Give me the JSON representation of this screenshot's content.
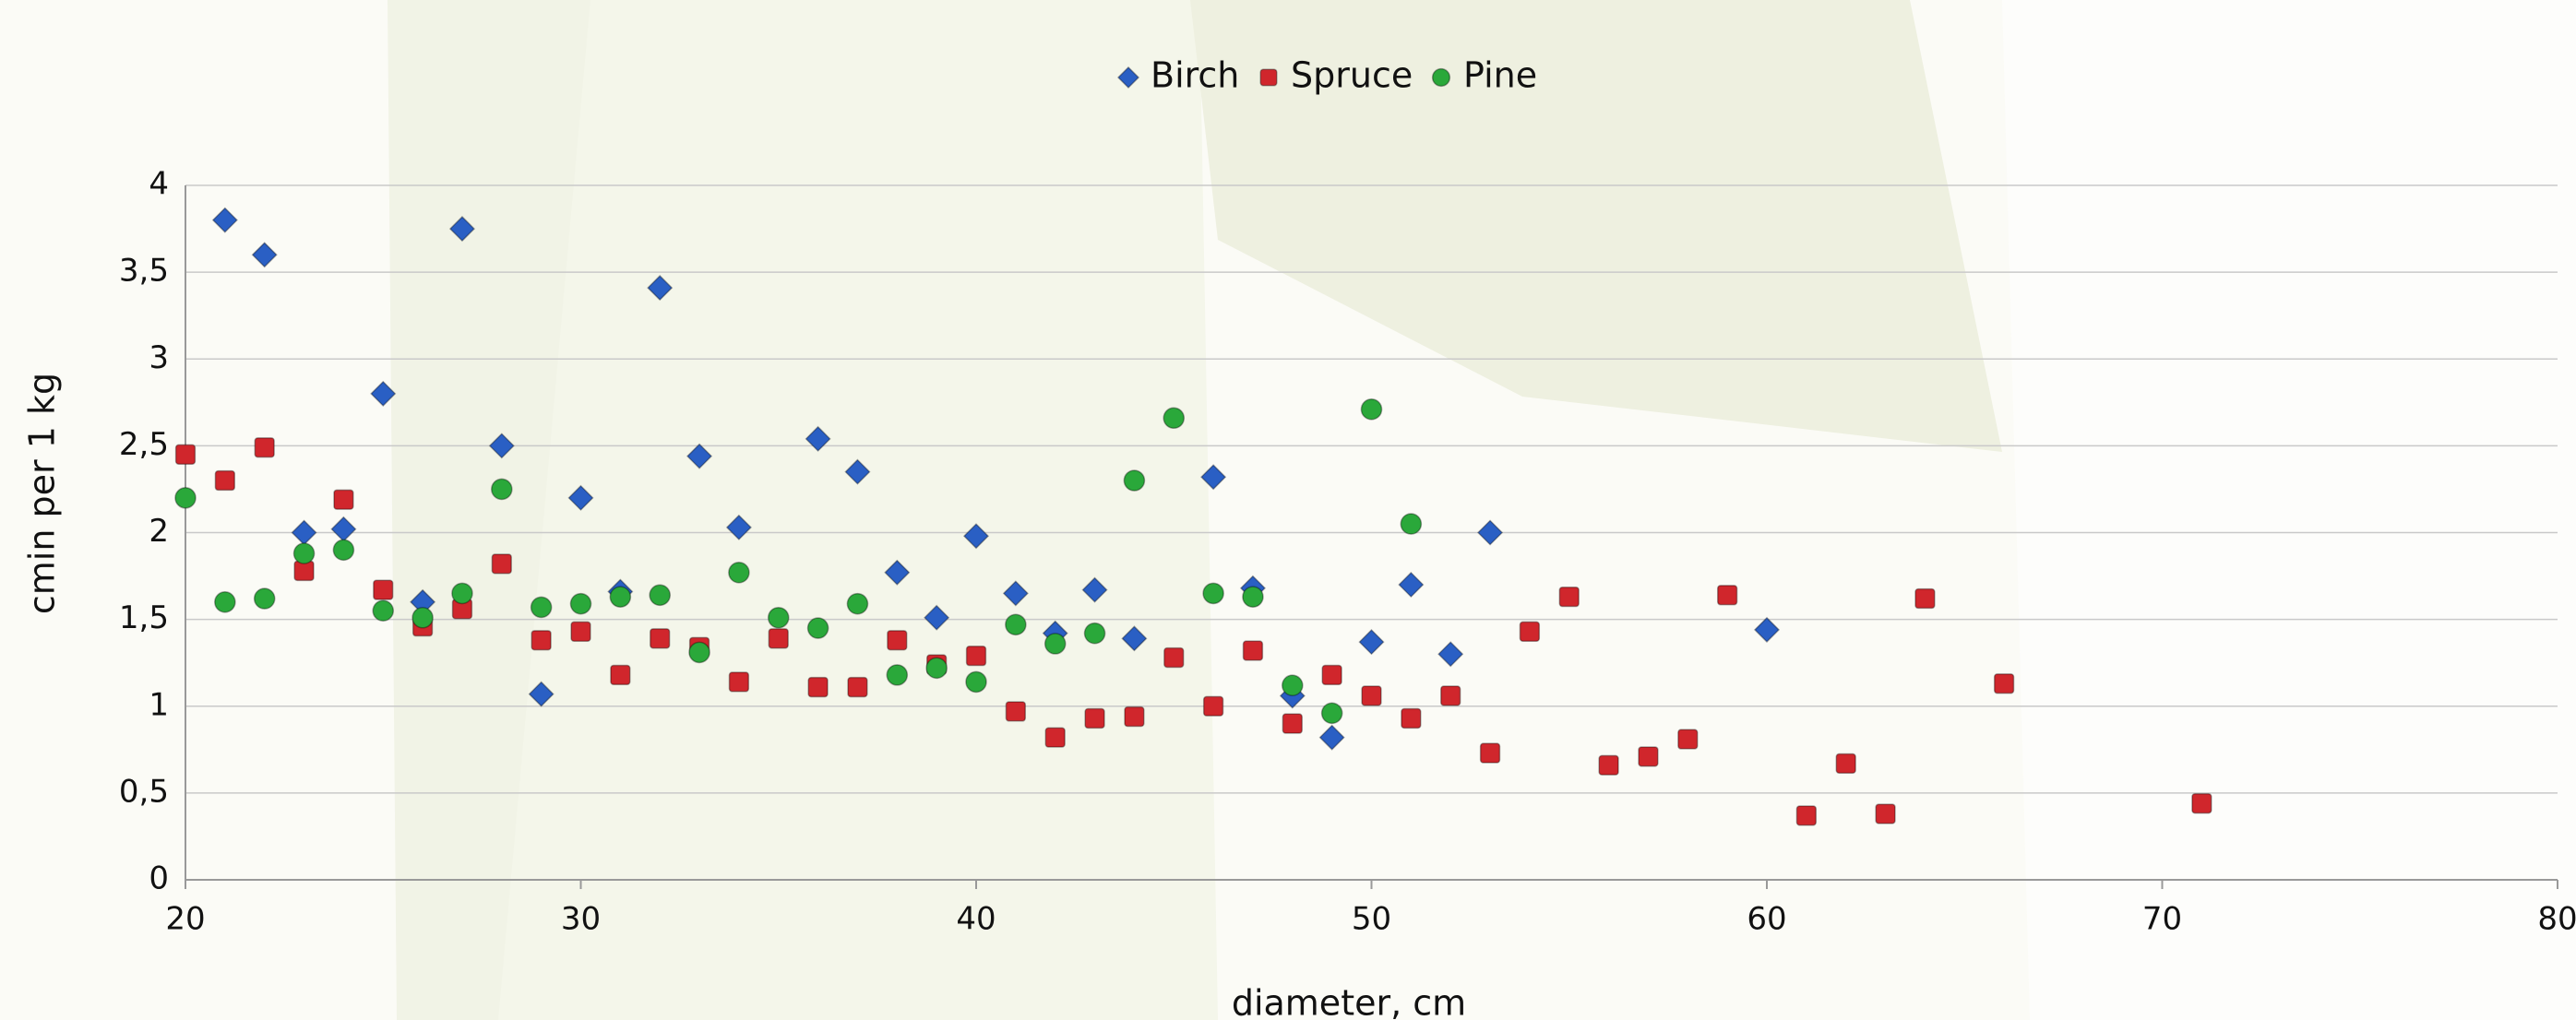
{
  "chart_data": {
    "type": "scatter",
    "x_label": "diameter, cm",
    "y_label": "cmin per 1 kg",
    "xlim": [
      20,
      80
    ],
    "xticks": [
      20,
      30,
      40,
      50,
      60,
      70,
      80
    ],
    "ylim": [
      0,
      4
    ],
    "yticks": [
      0,
      {
        "value": 0.5,
        "label": "0,5"
      },
      1,
      {
        "value": 1.5,
        "label": "1,5"
      },
      2,
      {
        "value": 2.5,
        "label": "2,5"
      },
      3,
      {
        "value": 3.5,
        "label": "3,5"
      },
      4
    ],
    "grid": true,
    "legend": "top",
    "series": [
      {
        "name": "Birch",
        "color": "#2a5fc4",
        "marker": "diamond",
        "x": [
          21,
          22,
          23,
          24,
          25,
          26,
          27,
          28,
          29,
          30,
          31,
          32,
          33,
          34,
          36,
          37,
          38,
          39,
          40,
          41,
          42,
          43,
          44,
          46,
          47,
          48,
          49,
          50,
          51,
          52,
          53,
          60
        ],
        "values": [
          3.8,
          3.6,
          2.0,
          2.02,
          2.8,
          1.6,
          3.75,
          2.5,
          1.07,
          2.2,
          1.66,
          3.41,
          2.44,
          2.03,
          2.54,
          2.35,
          1.77,
          1.51,
          1.98,
          1.65,
          1.42,
          1.67,
          1.39,
          2.32,
          1.68,
          1.06,
          0.82,
          1.37,
          1.7,
          1.3,
          2.0,
          1.44
        ]
      },
      {
        "name": "Spruce",
        "color": "#d0262c",
        "marker": "square",
        "x": [
          20,
          21,
          22,
          23,
          24,
          25,
          26,
          27,
          28,
          29,
          30,
          31,
          32,
          33,
          34,
          35,
          36,
          37,
          38,
          39,
          40,
          41,
          42,
          43,
          44,
          45,
          46,
          47,
          48,
          49,
          50,
          51,
          52,
          53,
          54,
          55,
          56,
          57,
          58,
          59,
          61,
          62,
          63,
          64,
          66,
          71
        ],
        "values": [
          2.45,
          2.3,
          2.49,
          1.78,
          2.19,
          1.67,
          1.46,
          1.56,
          1.82,
          1.38,
          1.43,
          1.18,
          1.39,
          1.34,
          1.14,
          1.39,
          1.11,
          1.11,
          1.38,
          1.24,
          1.29,
          0.97,
          0.82,
          0.93,
          0.94,
          1.28,
          1.0,
          1.32,
          0.9,
          1.18,
          1.06,
          0.93,
          1.06,
          0.73,
          1.43,
          1.63,
          0.66,
          0.71,
          0.81,
          1.64,
          0.37,
          0.67,
          0.38,
          1.62,
          1.13,
          0.44
        ]
      },
      {
        "name": "Pine",
        "color": "#2aa83a",
        "marker": "circle",
        "x": [
          20,
          21,
          22,
          23,
          24,
          25,
          26,
          27,
          28,
          29,
          30,
          31,
          32,
          33,
          34,
          35,
          36,
          37,
          38,
          39,
          40,
          41,
          42,
          43,
          44,
          45,
          46,
          47,
          48,
          49,
          50,
          51
        ],
        "values": [
          2.2,
          1.6,
          1.62,
          1.88,
          1.9,
          1.55,
          1.51,
          1.65,
          2.25,
          1.57,
          1.59,
          1.63,
          1.64,
          1.31,
          1.77,
          1.51,
          1.45,
          1.59,
          1.18,
          1.22,
          1.14,
          1.47,
          1.36,
          1.42,
          2.3,
          2.66,
          1.65,
          1.63,
          1.12,
          0.96,
          2.71,
          2.05
        ]
      }
    ]
  }
}
